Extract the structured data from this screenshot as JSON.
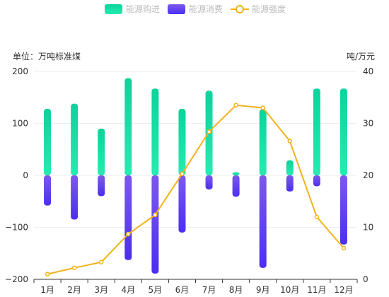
{
  "chart_data": {
    "type": "bar+line",
    "categories": [
      "1月",
      "2月",
      "3月",
      "4月",
      "5月",
      "6月",
      "7月",
      "8月",
      "9月",
      "10月",
      "11月",
      "12月"
    ],
    "series": [
      {
        "name": "能源购进",
        "type": "bar",
        "axis": "left",
        "values": [
          128,
          138,
          90,
          187,
          167,
          128,
          163,
          6,
          127,
          29,
          167,
          167
        ]
      },
      {
        "name": "能源消费",
        "type": "bar",
        "axis": "left",
        "values": [
          -58,
          -85,
          -40,
          -163,
          -189,
          -110,
          -27,
          -41,
          -178,
          -31,
          -21,
          -133
        ]
      },
      {
        "name": "能源强度",
        "type": "line",
        "axis": "right",
        "values": [
          1,
          2.2,
          3.3,
          8.7,
          12.4,
          20.3,
          28.4,
          33.5,
          33,
          26.6,
          12,
          6
        ]
      }
    ],
    "left_axis": {
      "unit_label": "单位：万吨标准煤",
      "ylim": [
        -200,
        200
      ],
      "ticks": [
        200,
        100,
        0,
        -100,
        -200
      ]
    },
    "right_axis": {
      "unit_label": "吨/万元",
      "ylim": [
        0,
        40
      ],
      "ticks": [
        40,
        30,
        20,
        10,
        0
      ]
    },
    "legend_position": "top-center",
    "grid": true,
    "colors": {
      "purchase_top": "#0bd39b",
      "purchase_bottom": "#27ebb0",
      "consume_top": "#7c59ec",
      "consume_bottom": "#4b2ff0",
      "line": "#f2b21b",
      "grid": "#eeeeee",
      "axis": "#333333"
    }
  }
}
